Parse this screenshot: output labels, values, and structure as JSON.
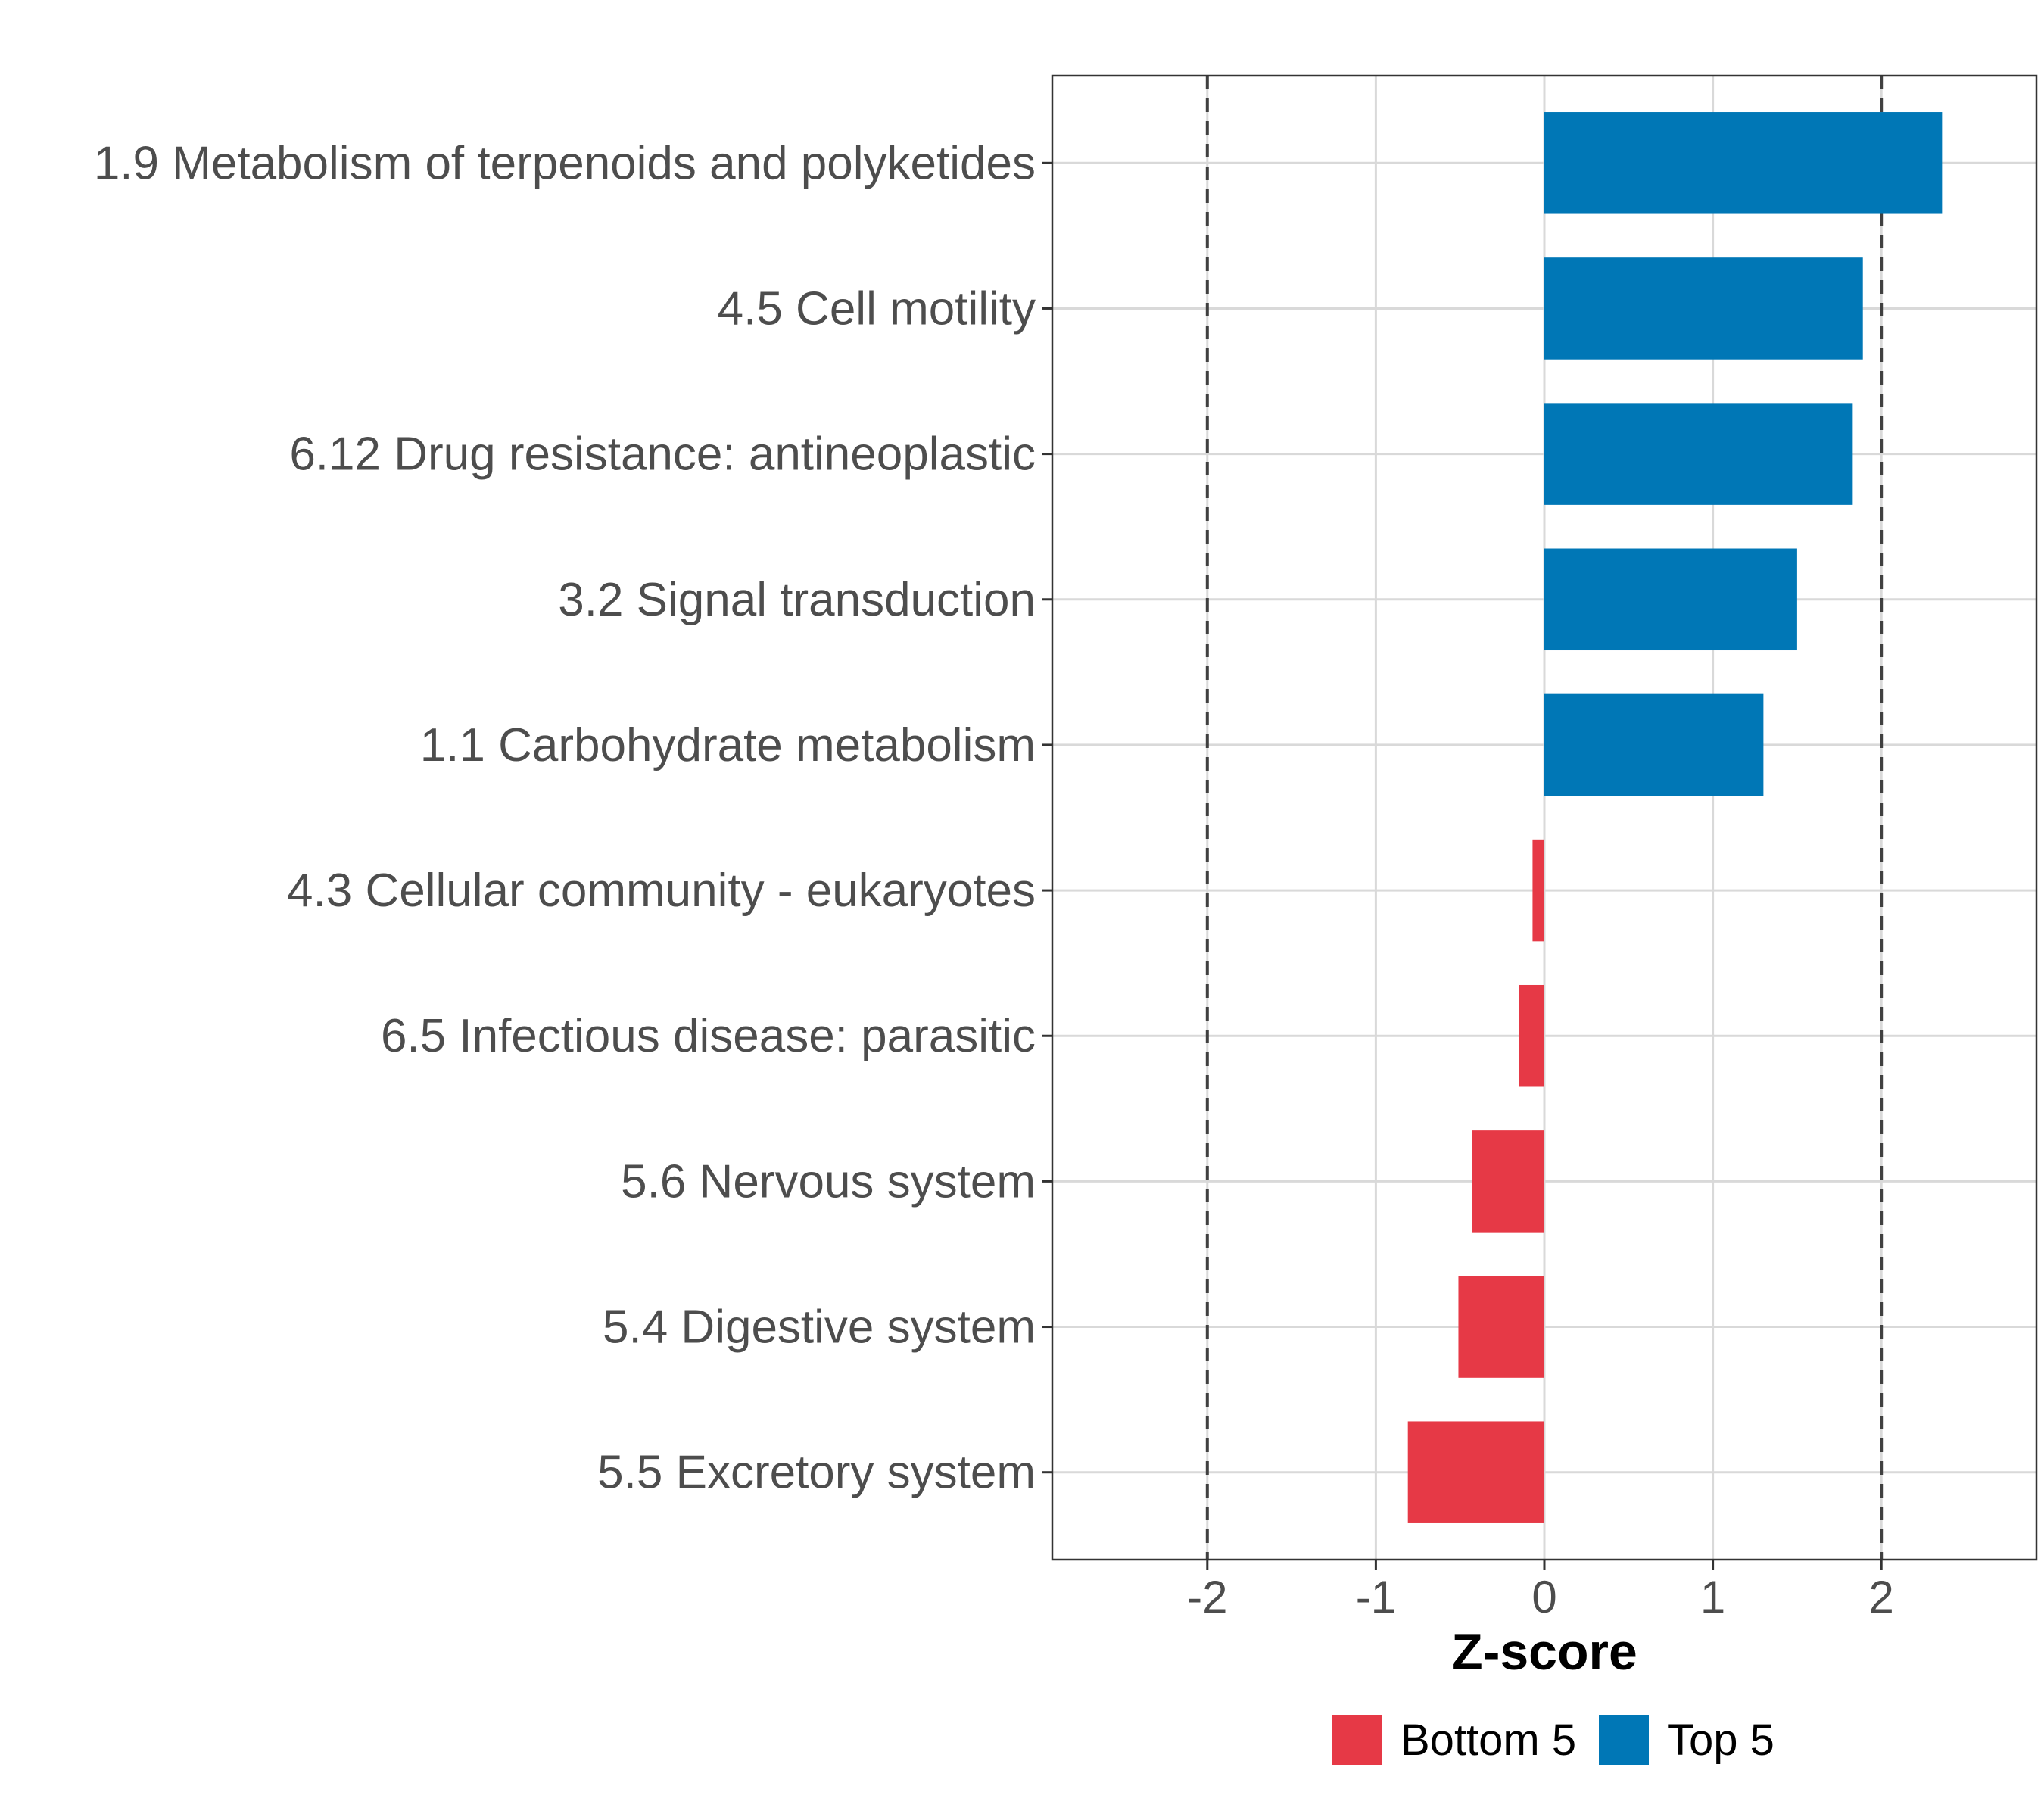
{
  "chart_data": {
    "type": "bar",
    "orientation": "horizontal",
    "categories": [
      "1.9 Metabolism of terpenoids and polyketides",
      "4.5 Cell motility",
      "6.12 Drug resistance: antineoplastic",
      "3.2 Signal transduction",
      "1.1 Carbohydrate metabolism",
      "4.3 Cellular community - eukaryotes",
      "6.5 Infectious disease: parasitic",
      "5.6 Nervous system",
      "5.4 Digestive system",
      "5.5 Excretory system"
    ],
    "values": [
      2.36,
      1.89,
      1.83,
      1.5,
      1.3,
      -0.07,
      -0.15,
      -0.43,
      -0.51,
      -0.81
    ],
    "groups": [
      "Top 5",
      "Top 5",
      "Top 5",
      "Top 5",
      "Top 5",
      "Bottom 5",
      "Bottom 5",
      "Bottom 5",
      "Bottom 5",
      "Bottom 5"
    ],
    "xlabel": "Z-score",
    "ylabel": "",
    "title": "",
    "xlim": [
      -2.92,
      2.92
    ],
    "xticks": [
      -2,
      -1,
      0,
      1,
      2
    ],
    "xtick_labels": [
      "-2",
      "-1",
      "0",
      "1",
      "2"
    ],
    "reference_lines": [
      -2,
      2
    ],
    "grid": true,
    "legend": {
      "position": "bottom",
      "entries": [
        {
          "label": "Bottom 5",
          "color": "#e63946"
        },
        {
          "label": "Top 5",
          "color": "#0077b6"
        }
      ]
    },
    "colors": {
      "Top 5": "#0077b6",
      "Bottom 5": "#e63946"
    }
  }
}
